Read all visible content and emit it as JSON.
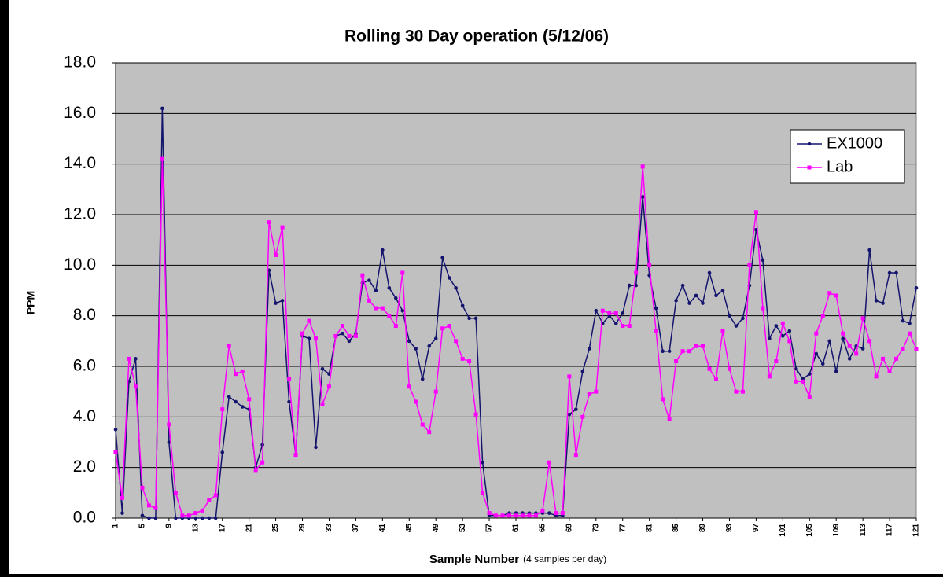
{
  "chart_data": {
    "type": "line",
    "title": "Rolling 30 Day operation (5/12/06)",
    "x_label": "Sample Number",
    "x_label_note": "(4 samples per day)",
    "y_label": "PPM",
    "x": [
      1,
      2,
      3,
      4,
      5,
      6,
      7,
      8,
      9,
      10,
      11,
      12,
      13,
      14,
      15,
      16,
      17,
      18,
      19,
      20,
      21,
      22,
      23,
      24,
      25,
      26,
      27,
      28,
      29,
      30,
      31,
      32,
      33,
      34,
      35,
      36,
      37,
      38,
      39,
      40,
      41,
      42,
      43,
      44,
      45,
      46,
      47,
      48,
      49,
      50,
      51,
      52,
      53,
      54,
      55,
      56,
      57,
      58,
      59,
      60,
      61,
      62,
      63,
      64,
      65,
      66,
      67,
      68,
      69,
      70,
      71,
      72,
      73,
      74,
      75,
      76,
      77,
      78,
      79,
      80,
      81,
      82,
      83,
      84,
      85,
      86,
      87,
      88,
      89,
      90,
      91,
      92,
      93,
      94,
      95,
      96,
      97,
      98,
      99,
      100,
      101,
      102,
      103,
      104,
      105,
      106,
      107,
      108,
      109,
      110,
      111,
      112,
      113,
      114,
      115,
      116,
      117,
      118,
      119,
      120,
      121
    ],
    "xlim": [
      1,
      121
    ],
    "xticks": [
      1,
      5,
      9,
      13,
      17,
      21,
      25,
      29,
      33,
      37,
      41,
      45,
      49,
      53,
      57,
      61,
      65,
      69,
      73,
      77,
      81,
      85,
      89,
      93,
      97,
      101,
      105,
      109,
      113,
      117,
      121
    ],
    "ylim": [
      0,
      18
    ],
    "yticks": [
      {
        "value": 0,
        "label": "0.0"
      },
      {
        "value": 2,
        "label": "2.0"
      },
      {
        "value": 4,
        "label": "4.0"
      },
      {
        "value": 6,
        "label": "6.0"
      },
      {
        "value": 8,
        "label": "8.0"
      },
      {
        "value": 10,
        "label": "10.0"
      },
      {
        "value": 12,
        "label": "12.0"
      },
      {
        "value": 14,
        "label": "14.0"
      },
      {
        "value": 16,
        "label": "16.0"
      },
      {
        "value": 18,
        "label": "18.0"
      }
    ],
    "grid": true,
    "legend": "upper right",
    "series": [
      {
        "name": "EX1000",
        "color": "#14146e",
        "marker": "circle",
        "values": [
          3.5,
          0.2,
          5.4,
          6.3,
          0.1,
          0,
          0,
          16.2,
          3.0,
          0,
          0,
          0,
          0,
          0,
          0,
          0,
          2.6,
          4.8,
          4.6,
          4.4,
          4.3,
          2.0,
          2.9,
          9.8,
          8.5,
          8.6,
          4.6,
          2.5,
          7.2,
          7.1,
          2.8,
          5.9,
          5.7,
          7.2,
          7.3,
          7.0,
          7.3,
          9.3,
          9.4,
          9.0,
          10.6,
          9.1,
          8.7,
          8.2,
          7.0,
          6.7,
          5.5,
          6.8,
          7.1,
          10.3,
          9.5,
          9.1,
          8.4,
          7.9,
          7.9,
          2.2,
          0.1,
          0.1,
          0.1,
          0.2,
          0.2,
          0.2,
          0.2,
          0.2,
          0.2,
          0.2,
          0.1,
          0.1,
          4.1,
          4.3,
          5.8,
          6.7,
          8.2,
          7.7,
          8.0,
          7.7,
          8.1,
          9.2,
          9.2,
          12.7,
          9.6,
          8.3,
          6.6,
          6.6,
          8.6,
          9.2,
          8.5,
          8.8,
          8.5,
          9.7,
          8.8,
          9.0,
          8.0,
          7.6,
          7.9,
          9.2,
          11.4,
          10.2,
          7.1,
          7.6,
          7.2,
          7.4,
          5.9,
          5.5,
          5.7,
          6.5,
          6.1,
          7.0,
          5.8,
          7.1,
          6.3,
          6.8,
          6.7,
          10.6,
          8.6,
          8.5,
          9.7,
          9.7,
          7.8,
          7.7,
          9.1
        ]
      },
      {
        "name": "Lab",
        "color": "#ff00ff",
        "marker": "square",
        "values": [
          2.6,
          0.8,
          6.3,
          5.2,
          1.2,
          0.5,
          0.4,
          14.2,
          3.7,
          1.0,
          0.1,
          0.1,
          0.2,
          0.3,
          0.7,
          0.9,
          4.3,
          6.8,
          5.7,
          5.8,
          4.7,
          1.9,
          2.2,
          11.7,
          10.4,
          11.5,
          5.5,
          2.5,
          7.3,
          7.8,
          7.1,
          4.5,
          5.2,
          7.2,
          7.6,
          7.2,
          7.2,
          9.6,
          8.6,
          8.3,
          8.3,
          8.0,
          7.6,
          9.7,
          5.2,
          4.6,
          3.7,
          3.4,
          5.0,
          7.5,
          7.6,
          7.0,
          6.3,
          6.2,
          4.1,
          1.0,
          0.2,
          0.1,
          0.1,
          0.1,
          0.1,
          0.1,
          0.1,
          0.1,
          0.3,
          2.2,
          0.2,
          0.2,
          5.6,
          2.5,
          4.0,
          4.9,
          5.0,
          8.2,
          8.1,
          8.1,
          7.6,
          7.6,
          9.7,
          13.9,
          10.0,
          7.4,
          4.7,
          3.9,
          6.2,
          6.6,
          6.6,
          6.8,
          6.8,
          5.9,
          5.5,
          7.4,
          5.9,
          5.0,
          5.0,
          10.0,
          12.1,
          8.3,
          5.6,
          6.2,
          7.7,
          7.0,
          5.4,
          5.4,
          4.8,
          7.3,
          8.0,
          8.9,
          8.8,
          7.3,
          6.8,
          6.5,
          7.9,
          7.0,
          5.6,
          6.3,
          5.8,
          6.3,
          6.7,
          7.3,
          6.7
        ]
      }
    ]
  }
}
